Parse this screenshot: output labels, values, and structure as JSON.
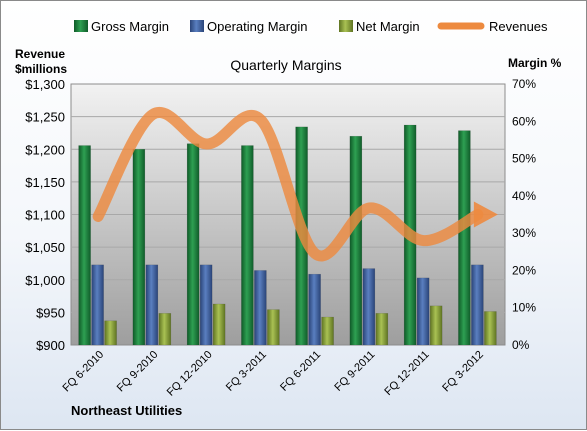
{
  "chart_data": {
    "type": "bar",
    "title": "Quarterly Margins",
    "company": "Northeast Utilities",
    "y_left_label_lines": [
      "Revenue",
      "$millions"
    ],
    "y_right_label": "Margin %",
    "categories": [
      "FQ 6-2010",
      "FQ 9-2010",
      "FQ 12-2010",
      "FQ 3-2011",
      "FQ 6-2011",
      "FQ 9-2011",
      "FQ 12-2011",
      "FQ 3-2012"
    ],
    "y_left_range": [
      900,
      1300
    ],
    "y_left_ticks": [
      "$900",
      "$950",
      "$1,000",
      "$1,050",
      "$1,100",
      "$1,150",
      "$1,200",
      "$1,250",
      "$1,300"
    ],
    "y_right_range": [
      0,
      70
    ],
    "y_right_ticks": [
      "0%",
      "10%",
      "20%",
      "30%",
      "40%",
      "50%",
      "60%",
      "70%"
    ],
    "legend_position": "top",
    "grid": true,
    "series": [
      {
        "name": "Gross Margin",
        "kind": "bar",
        "axis": "right",
        "color": "#1e7a3a",
        "values": [
          53.5,
          52.5,
          54.0,
          53.5,
          58.5,
          56.0,
          59.0,
          57.5
        ]
      },
      {
        "name": "Operating Margin",
        "kind": "bar",
        "axis": "right",
        "color": "#3d5f9e",
        "values": [
          21.5,
          21.5,
          21.5,
          20.0,
          19.0,
          20.5,
          18.0,
          21.5
        ]
      },
      {
        "name": "Net Margin",
        "kind": "bar",
        "axis": "right",
        "color": "#8aa03a",
        "values": [
          6.5,
          8.5,
          11.0,
          9.5,
          7.5,
          8.5,
          10.5,
          9.0
        ]
      },
      {
        "name": "Revenues",
        "kind": "line",
        "axis": "left",
        "color": "#ed8a3f",
        "values": [
          1097,
          1253,
          1208,
          1245,
          1040,
          1110,
          1060,
          1100
        ]
      }
    ]
  }
}
